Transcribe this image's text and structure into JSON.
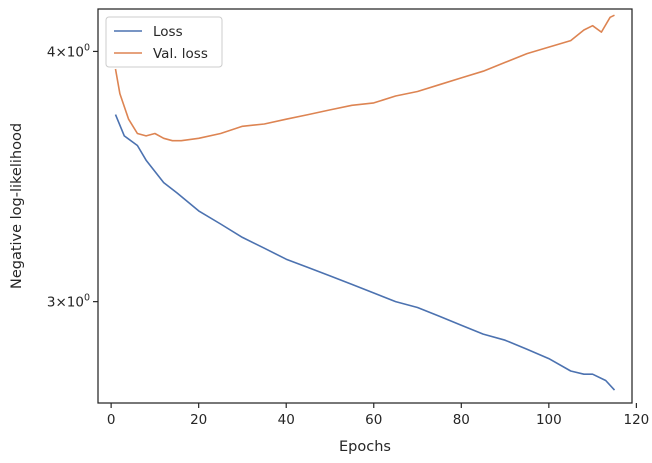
{
  "chart_data": {
    "type": "line",
    "title": "",
    "xlabel": "Epochs",
    "ylabel": "Negative log-likelihood",
    "yscale": "log",
    "xlim": [
      -3,
      119
    ],
    "ylim": [
      2.67,
      4.2
    ],
    "grid": false,
    "legend_position": "top-left",
    "x_ticks": [
      0,
      20,
      40,
      60,
      80,
      100,
      120
    ],
    "y_ticks": [
      {
        "value": 3,
        "mantissa": "3",
        "base": "10",
        "exp": "0"
      },
      {
        "value": 4,
        "mantissa": "4",
        "base": "10",
        "exp": "0"
      }
    ],
    "series": [
      {
        "name": "Loss",
        "color": "#4c72b0",
        "points": [
          [
            1,
            3.72
          ],
          [
            3,
            3.63
          ],
          [
            6,
            3.59
          ],
          [
            8,
            3.53
          ],
          [
            12,
            3.44
          ],
          [
            15,
            3.4
          ],
          [
            20,
            3.33
          ],
          [
            25,
            3.28
          ],
          [
            30,
            3.23
          ],
          [
            35,
            3.19
          ],
          [
            40,
            3.15
          ],
          [
            45,
            3.12
          ],
          [
            50,
            3.09
          ],
          [
            55,
            3.06
          ],
          [
            60,
            3.03
          ],
          [
            65,
            3.0
          ],
          [
            70,
            2.98
          ],
          [
            75,
            2.95
          ],
          [
            80,
            2.92
          ],
          [
            85,
            2.89
          ],
          [
            90,
            2.87
          ],
          [
            95,
            2.84
          ],
          [
            100,
            2.81
          ],
          [
            105,
            2.77
          ],
          [
            108,
            2.76
          ],
          [
            110,
            2.76
          ],
          [
            113,
            2.74
          ],
          [
            115,
            2.71
          ]
        ]
      },
      {
        "name": "Val. loss",
        "color": "#dd8452",
        "points": [
          [
            1,
            3.92
          ],
          [
            2,
            3.81
          ],
          [
            4,
            3.7
          ],
          [
            6,
            3.64
          ],
          [
            8,
            3.63
          ],
          [
            10,
            3.64
          ],
          [
            12,
            3.62
          ],
          [
            14,
            3.61
          ],
          [
            16,
            3.61
          ],
          [
            20,
            3.62
          ],
          [
            25,
            3.64
          ],
          [
            30,
            3.67
          ],
          [
            35,
            3.68
          ],
          [
            40,
            3.7
          ],
          [
            45,
            3.72
          ],
          [
            50,
            3.74
          ],
          [
            55,
            3.76
          ],
          [
            60,
            3.77
          ],
          [
            65,
            3.8
          ],
          [
            70,
            3.82
          ],
          [
            75,
            3.85
          ],
          [
            80,
            3.88
          ],
          [
            85,
            3.91
          ],
          [
            90,
            3.95
          ],
          [
            95,
            3.99
          ],
          [
            100,
            4.02
          ],
          [
            105,
            4.05
          ],
          [
            108,
            4.1
          ],
          [
            110,
            4.12
          ],
          [
            112,
            4.09
          ],
          [
            114,
            4.16
          ],
          [
            115,
            4.17
          ]
        ]
      }
    ]
  }
}
